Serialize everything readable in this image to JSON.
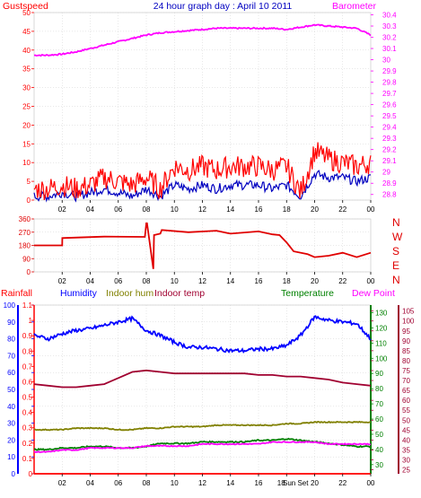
{
  "title": "24 hour graph day : April 10 2011",
  "x_tick_labels": [
    "02",
    "04",
    "06",
    "08",
    "10",
    "12",
    "14",
    "16",
    "18",
    "20",
    "22",
    "00"
  ],
  "sunset_label": "Sun Set",
  "colors": {
    "gust": "#ff0000",
    "wind": "#0000c0",
    "barometer": "#ff00ff",
    "direction": "#e00000",
    "humidity": "#0000ff",
    "indoor_hum": "#808000",
    "indoor_temp": "#a00030",
    "temperature": "#008000",
    "dew_point": "#ff00ff",
    "rainfall": "#ff0000",
    "title": "#0000c0"
  },
  "chart_data": [
    {
      "type": "line",
      "name": "wind",
      "left_axis": {
        "label": "Gustspeed",
        "ticks": [
          "0",
          "5",
          "10",
          "15",
          "20",
          "25",
          "30",
          "35",
          "40",
          "45",
          "50"
        ],
        "ylim": [
          0,
          50
        ]
      },
      "right_axis": {
        "label": "Barometer",
        "ticks": [
          "28.8",
          "28.9",
          "29",
          "29.1",
          "29.2",
          "29.3",
          "29.4",
          "29.5",
          "29.6",
          "29.7",
          "29.8",
          "29.9",
          "30",
          "30.1",
          "30.2",
          "30.3",
          "30.4"
        ],
        "ylim": [
          28.75,
          30.42
        ]
      },
      "x_hours": [
        0,
        1,
        2,
        3,
        4,
        5,
        6,
        7,
        8,
        9,
        10,
        11,
        12,
        13,
        14,
        15,
        16,
        17,
        18,
        19,
        20,
        21,
        22,
        23,
        24
      ],
      "series": [
        {
          "name": "Barometer",
          "axis": "right",
          "values": [
            30.04,
            30.04,
            30.05,
            30.07,
            30.1,
            30.13,
            30.16,
            30.19,
            30.22,
            30.24,
            30.25,
            30.26,
            30.27,
            30.28,
            30.28,
            30.28,
            30.28,
            30.28,
            30.27,
            30.29,
            30.31,
            30.3,
            30.29,
            30.28,
            30.22
          ]
        },
        {
          "name": "Gustspeed",
          "axis": "left",
          "values": [
            3,
            3,
            4,
            3,
            4,
            6,
            5,
            4,
            6,
            3,
            9,
            8,
            9,
            8,
            9,
            9,
            9,
            8,
            9,
            2,
            13,
            11,
            10,
            9,
            10
          ]
        },
        {
          "name": "Windspeed",
          "axis": "left",
          "values": [
            1,
            1,
            2,
            1,
            2,
            3,
            2,
            1,
            3,
            1,
            4,
            3,
            4,
            3,
            4,
            4,
            4,
            3,
            4,
            1,
            7,
            6,
            6,
            5,
            6
          ]
        }
      ]
    },
    {
      "type": "line",
      "name": "direction",
      "left_axis": {
        "ticks": [
          "0",
          "90",
          "180",
          "270",
          "360"
        ],
        "ylim": [
          0,
          360
        ]
      },
      "right_axis": {
        "labels": [
          "N",
          "W",
          "S",
          "E",
          "N"
        ]
      },
      "x_hours": [
        0,
        2,
        2.01,
        5,
        7.9,
        8,
        8.05,
        8.5,
        8.55,
        9,
        9.1,
        11,
        13,
        14,
        16,
        17,
        17.5,
        18,
        18.5,
        19.5,
        20,
        21,
        22,
        23,
        24
      ],
      "series": [
        {
          "name": "Direction",
          "values": [
            180,
            180,
            230,
            240,
            238,
            330,
            330,
            20,
            250,
            260,
            285,
            270,
            280,
            260,
            275,
            255,
            250,
            200,
            140,
            120,
            100,
            110,
            130,
            100,
            130
          ]
        }
      ]
    },
    {
      "type": "line",
      "name": "temperature-humidity",
      "labels": {
        "rainfall": "Rainfall",
        "humidity": "Humidity",
        "indoor_hum": "Indoor hum",
        "indoor_temp": "Indoor temp",
        "temperature": "Temperature",
        "dew_point": "Dew Point"
      },
      "humidity_axis": {
        "ticks": [
          "0",
          "10",
          "20",
          "30",
          "40",
          "50",
          "60",
          "70",
          "80",
          "90",
          "100"
        ],
        "ylim": [
          0,
          100
        ]
      },
      "rain_axis": {
        "ticks": [
          "0",
          "0.1",
          "0.2",
          "0.3",
          "0.4",
          "0.5",
          "0.6",
          "0.7",
          "0.8",
          "0.9",
          "1",
          "1.1"
        ],
        "ylim": [
          0,
          1.1
        ]
      },
      "temperature_axis": {
        "ticks": [
          "30",
          "40",
          "50",
          "60",
          "70",
          "80",
          "90",
          "100",
          "110",
          "120",
          "130"
        ],
        "ylim": [
          24,
          135
        ]
      },
      "dewpoint_axis": {
        "ticks": [
          "25",
          "30",
          "35",
          "40",
          "45",
          "50",
          "55",
          "60",
          "65",
          "70",
          "75",
          "80",
          "85",
          "90",
          "95",
          "100",
          "105"
        ],
        "ylim": [
          23,
          108
        ]
      },
      "x_hours": [
        0,
        1,
        2,
        3,
        4,
        5,
        6,
        7,
        8,
        9,
        10,
        11,
        12,
        13,
        14,
        15,
        16,
        17,
        18,
        19,
        20,
        21,
        22,
        23,
        24
      ],
      "series": [
        {
          "name": "Humidity",
          "axis": "humidity",
          "values": [
            82,
            80,
            83,
            85,
            86,
            88,
            90,
            92,
            85,
            82,
            78,
            75,
            75,
            74,
            73,
            73,
            74,
            74,
            76,
            82,
            93,
            91,
            90,
            89,
            80
          ]
        },
        {
          "name": "Indoor temp",
          "axis": "temperature",
          "values": [
            83,
            82,
            81,
            81,
            82,
            83,
            87,
            91,
            92,
            91,
            90,
            90,
            90,
            90,
            90,
            90,
            89,
            89,
            88,
            88,
            87,
            86,
            84,
            83,
            82
          ]
        },
        {
          "name": "Indoor hum",
          "axis": "temperature",
          "values": [
            53,
            53,
            53,
            54,
            54,
            54,
            53,
            53,
            54,
            54,
            55,
            55,
            55,
            56,
            56,
            56,
            56,
            56,
            57,
            57,
            58,
            58,
            58,
            58,
            58
          ]
        },
        {
          "name": "Temperature",
          "axis": "temperature",
          "values": [
            40,
            40,
            41,
            41,
            42,
            42,
            41,
            41,
            42,
            44,
            44,
            44,
            45,
            45,
            45,
            45,
            46,
            46,
            47,
            46,
            45,
            44,
            43,
            42,
            42
          ]
        },
        {
          "name": "Dew Point",
          "axis": "dewpoint",
          "values": [
            34,
            34,
            35,
            35,
            36,
            36,
            36,
            36,
            37,
            37,
            37,
            37,
            38,
            38,
            38,
            38,
            38,
            39,
            39,
            39,
            39,
            38,
            38,
            38,
            38
          ]
        },
        {
          "name": "Rainfall",
          "axis": "rain",
          "values": [
            0,
            0,
            0,
            0,
            0,
            0,
            0,
            0,
            0,
            0,
            0,
            0,
            0,
            0,
            0,
            0,
            0,
            0,
            0,
            0,
            0,
            0,
            0,
            0,
            0
          ]
        }
      ]
    }
  ]
}
